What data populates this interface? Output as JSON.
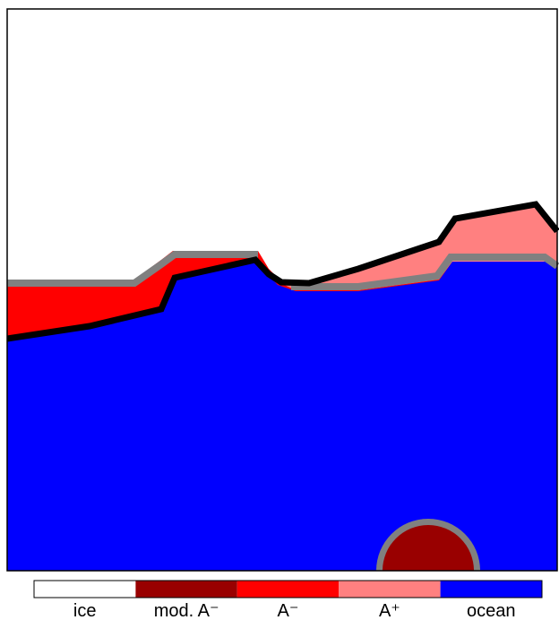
{
  "legend": {
    "items": [
      {
        "label": "ice",
        "color": "#ffffff"
      },
      {
        "label": "mod. A⁻",
        "color": "#990000"
      },
      {
        "label": "A⁻",
        "color": "#ff0000"
      },
      {
        "label": "A⁺",
        "color": "#ff8080"
      },
      {
        "label": "ocean",
        "color": "#0000ff"
      }
    ]
  }
}
